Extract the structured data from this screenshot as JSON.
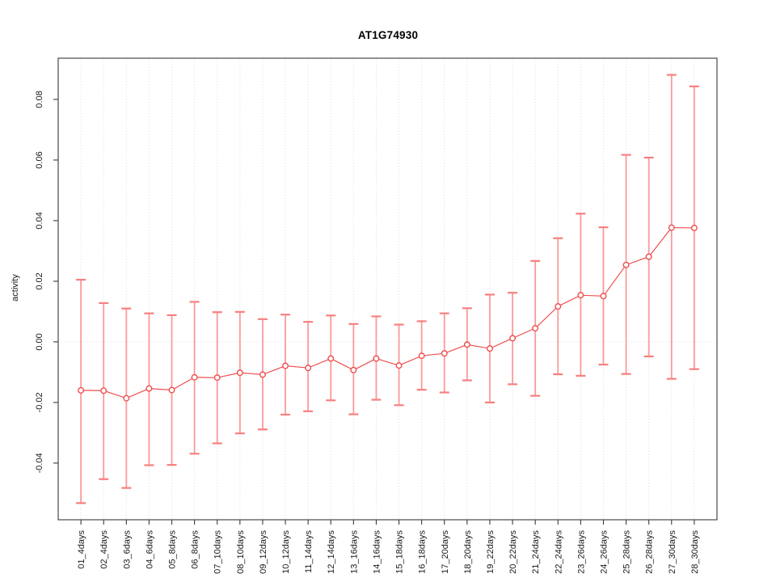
{
  "chart_data": {
    "type": "line",
    "title": "AT1G74930",
    "xlabel": "",
    "ylabel": "activity",
    "grid": "vertical-dotted-per-category, dotted-zero-line",
    "legend": "none",
    "marker": "open-circle",
    "error_bars": true,
    "ylim": [
      -0.0587,
      0.0936
    ],
    "yticks": {
      "values": [
        -0.04,
        -0.02,
        0.0,
        0.02,
        0.04,
        0.06,
        0.08
      ],
      "labels": [
        "-0.04",
        "-0.02",
        "0.00",
        "0.02",
        "0.04",
        "0.06",
        "0.08"
      ]
    },
    "categories": [
      "01_4days",
      "02_4days",
      "03_6days",
      "04_6days",
      "05_8days",
      "06_8days",
      "07_10days",
      "08_10days",
      "09_12days",
      "10_12days",
      "11_14days",
      "12_14days",
      "13_16days",
      "14_16days",
      "15_18days",
      "16_18days",
      "17_20days",
      "18_20days",
      "19_22days",
      "20_22days",
      "21_24days",
      "22_24days",
      "23_26days",
      "24_26days",
      "25_28days",
      "26_28days",
      "27_30days",
      "28_30days"
    ],
    "series": [
      {
        "name": "activity",
        "values": [
          -0.016,
          -0.0161,
          -0.0186,
          -0.0154,
          -0.0159,
          -0.0117,
          -0.0118,
          -0.0102,
          -0.0108,
          -0.0079,
          -0.0086,
          -0.0055,
          -0.0093,
          -0.0055,
          -0.0078,
          -0.0046,
          -0.0038,
          -0.0009,
          -0.0022,
          0.0012,
          0.0045,
          0.0117,
          0.0154,
          0.0151,
          0.0254,
          0.0281,
          0.0377,
          0.0376
        ],
        "upper": [
          0.0205,
          0.0128,
          0.011,
          0.0094,
          0.0088,
          0.0132,
          0.0098,
          0.0099,
          0.0075,
          0.009,
          0.0066,
          0.0087,
          0.0059,
          0.0084,
          0.0057,
          0.0068,
          0.0094,
          0.0111,
          0.0156,
          0.0162,
          0.0267,
          0.0342,
          0.0423,
          0.0378,
          0.0617,
          0.0608,
          0.0881,
          0.0843
        ],
        "lower": [
          -0.0532,
          -0.0453,
          -0.0482,
          -0.0407,
          -0.0406,
          -0.0369,
          -0.0335,
          -0.0302,
          -0.0289,
          -0.024,
          -0.0229,
          -0.0193,
          -0.0239,
          -0.0191,
          -0.0209,
          -0.0158,
          -0.0167,
          -0.0127,
          -0.02,
          -0.014,
          -0.0178,
          -0.0107,
          -0.0112,
          -0.0075,
          -0.0106,
          -0.0048,
          -0.0122,
          -0.009
        ]
      }
    ],
    "colors": {
      "error_bar": "#FB9A9A",
      "error_cap": "#F87F7F",
      "point": "#EF4F4F",
      "line": "#EF4F4F",
      "grid": "#DBDBDB",
      "zero_line": "#E3E3E3",
      "axis": "#3A3A3A",
      "tick_text": "#1A1A1A"
    }
  }
}
